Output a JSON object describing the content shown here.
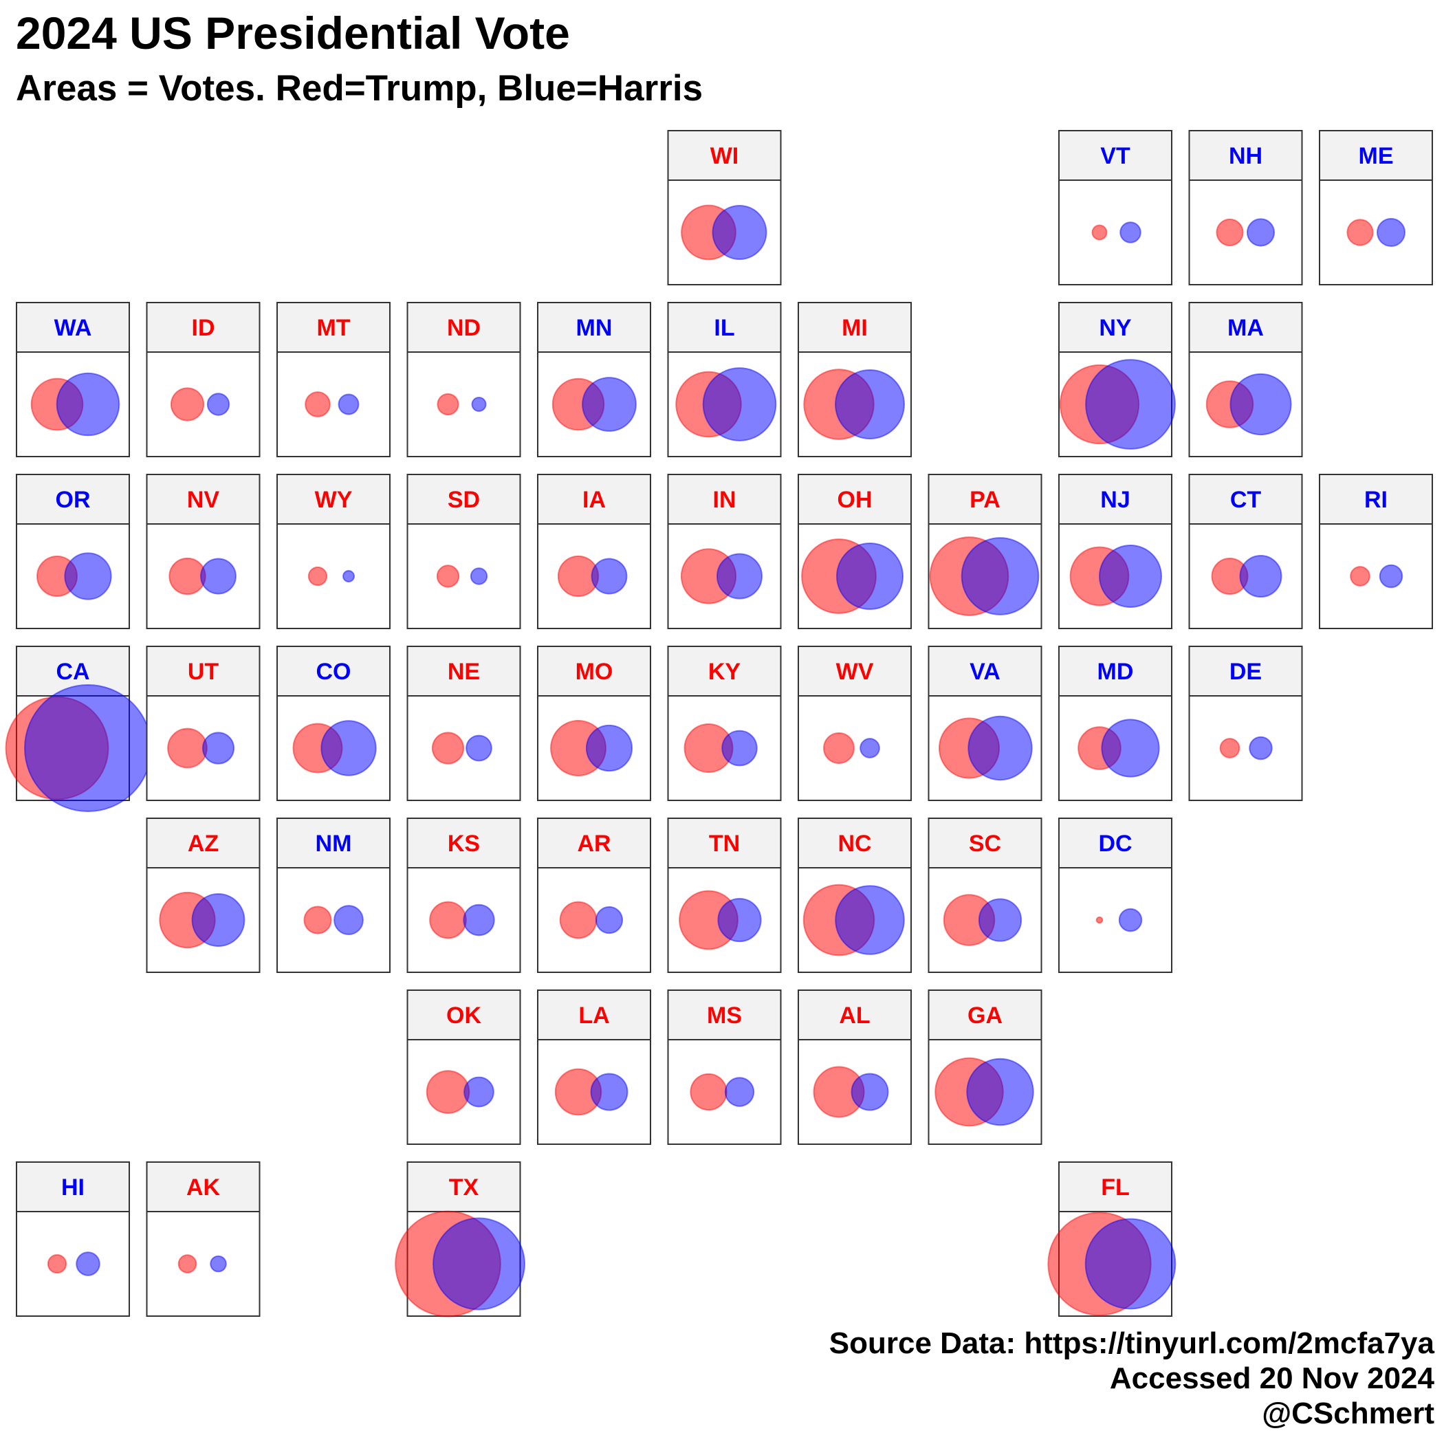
{
  "header": {
    "title": "2024 US Presidential Vote",
    "subtitle": "Areas = Votes. Red=Trump, Blue=Harris"
  },
  "footer": {
    "line1": "Source Data: https://tinyurl.com/2mcfa7ya",
    "line2": "Accessed 20 Nov 2024",
    "line3": "@CSchmert"
  },
  "colors": {
    "trump": "#ff0000",
    "harris": "#0000ff",
    "trump_fill": "rgba(255,0,0,0.5)",
    "harris_fill": "rgba(0,0,255,0.5)",
    "strip": "#f2f2f2",
    "border": "#333333"
  },
  "chart_data": {
    "type": "tile-grid bubble chart",
    "encoding": "circle area proportional to votes (millions); red circle = Trump, blue circle = Harris; state label colored by winner",
    "unit": "million votes",
    "tiles": [
      {
        "state": "WI",
        "row": 0,
        "col": 5,
        "winner": "R",
        "trump": 1.7,
        "harris": 1.67
      },
      {
        "state": "VT",
        "row": 0,
        "col": 8,
        "winner": "D",
        "trump": 0.12,
        "harris": 0.24
      },
      {
        "state": "NH",
        "row": 0,
        "col": 9,
        "winner": "D",
        "trump": 0.4,
        "harris": 0.42
      },
      {
        "state": "ME",
        "row": 0,
        "col": 10,
        "winner": "D",
        "trump": 0.38,
        "harris": 0.44
      },
      {
        "state": "WA",
        "row": 1,
        "col": 0,
        "winner": "D",
        "trump": 1.53,
        "harris": 2.25
      },
      {
        "state": "ID",
        "row": 1,
        "col": 1,
        "winner": "R",
        "trump": 0.61,
        "harris": 0.27
      },
      {
        "state": "MT",
        "row": 1,
        "col": 2,
        "winner": "R",
        "trump": 0.35,
        "harris": 0.23
      },
      {
        "state": "ND",
        "row": 1,
        "col": 3,
        "winner": "R",
        "trump": 0.25,
        "harris": 0.11
      },
      {
        "state": "MN",
        "row": 1,
        "col": 4,
        "winner": "D",
        "trump": 1.52,
        "harris": 1.66
      },
      {
        "state": "IL",
        "row": 1,
        "col": 5,
        "winner": "D",
        "trump": 2.45,
        "harris": 3.06
      },
      {
        "state": "MI",
        "row": 1,
        "col": 6,
        "winner": "R",
        "trump": 2.82,
        "harris": 2.74
      },
      {
        "state": "NY",
        "row": 1,
        "col": 8,
        "winner": "D",
        "trump": 3.58,
        "harris": 4.62
      },
      {
        "state": "MA",
        "row": 1,
        "col": 9,
        "winner": "D",
        "trump": 1.25,
        "harris": 2.13
      },
      {
        "state": "OR",
        "row": 2,
        "col": 0,
        "winner": "D",
        "trump": 0.92,
        "harris": 1.24
      },
      {
        "state": "NV",
        "row": 2,
        "col": 1,
        "winner": "R",
        "trump": 0.75,
        "harris": 0.71
      },
      {
        "state": "WY",
        "row": 2,
        "col": 2,
        "winner": "R",
        "trump": 0.19,
        "harris": 0.07
      },
      {
        "state": "SD",
        "row": 2,
        "col": 3,
        "winner": "R",
        "trump": 0.27,
        "harris": 0.15
      },
      {
        "state": "IA",
        "row": 2,
        "col": 4,
        "winner": "R",
        "trump": 0.93,
        "harris": 0.71
      },
      {
        "state": "IN",
        "row": 2,
        "col": 5,
        "winner": "R",
        "trump": 1.72,
        "harris": 1.16
      },
      {
        "state": "OH",
        "row": 2,
        "col": 6,
        "winner": "R",
        "trump": 3.18,
        "harris": 2.53
      },
      {
        "state": "PA",
        "row": 2,
        "col": 7,
        "winner": "R",
        "trump": 3.54,
        "harris": 3.42
      },
      {
        "state": "NJ",
        "row": 2,
        "col": 8,
        "winner": "D",
        "trump": 1.97,
        "harris": 2.22
      },
      {
        "state": "CT",
        "row": 2,
        "col": 9,
        "winner": "D",
        "trump": 0.74,
        "harris": 0.99
      },
      {
        "state": "RI",
        "row": 2,
        "col": 10,
        "winner": "D",
        "trump": 0.21,
        "harris": 0.29
      },
      {
        "state": "CA",
        "row": 3,
        "col": 0,
        "winner": "D",
        "trump": 6.08,
        "harris": 9.28
      },
      {
        "state": "UT",
        "row": 3,
        "col": 1,
        "winner": "R",
        "trump": 0.88,
        "harris": 0.56
      },
      {
        "state": "CO",
        "row": 3,
        "col": 2,
        "winner": "D",
        "trump": 1.38,
        "harris": 1.73
      },
      {
        "state": "NE",
        "row": 3,
        "col": 3,
        "winner": "R",
        "trump": 0.56,
        "harris": 0.37
      },
      {
        "state": "MO",
        "row": 3,
        "col": 4,
        "winner": "R",
        "trump": 1.75,
        "harris": 1.2
      },
      {
        "state": "KY",
        "row": 3,
        "col": 5,
        "winner": "R",
        "trump": 1.34,
        "harris": 0.7
      },
      {
        "state": "WV",
        "row": 3,
        "col": 6,
        "winner": "R",
        "trump": 0.53,
        "harris": 0.21
      },
      {
        "state": "VA",
        "row": 3,
        "col": 7,
        "winner": "D",
        "trump": 2.08,
        "harris": 2.34
      },
      {
        "state": "MD",
        "row": 3,
        "col": 8,
        "winner": "D",
        "trump": 1.04,
        "harris": 1.9
      },
      {
        "state": "DE",
        "row": 3,
        "col": 9,
        "winner": "D",
        "trump": 0.21,
        "harris": 0.29
      },
      {
        "state": "AZ",
        "row": 4,
        "col": 1,
        "winner": "R",
        "trump": 1.77,
        "harris": 1.58
      },
      {
        "state": "NM",
        "row": 4,
        "col": 2,
        "winner": "D",
        "trump": 0.42,
        "harris": 0.48
      },
      {
        "state": "KS",
        "row": 4,
        "col": 3,
        "winner": "R",
        "trump": 0.76,
        "harris": 0.54
      },
      {
        "state": "AR",
        "row": 4,
        "col": 4,
        "winner": "R",
        "trump": 0.76,
        "harris": 0.4
      },
      {
        "state": "TN",
        "row": 4,
        "col": 5,
        "winner": "R",
        "trump": 1.97,
        "harris": 1.06
      },
      {
        "state": "NC",
        "row": 4,
        "col": 6,
        "winner": "R",
        "trump": 2.88,
        "harris": 2.72
      },
      {
        "state": "SC",
        "row": 4,
        "col": 7,
        "winner": "R",
        "trump": 1.48,
        "harris": 1.03
      },
      {
        "state": "DC",
        "row": 4,
        "col": 8,
        "winner": "D",
        "trump": 0.02,
        "harris": 0.29
      },
      {
        "state": "OK",
        "row": 5,
        "col": 3,
        "winner": "R",
        "trump": 1.04,
        "harris": 0.5
      },
      {
        "state": "LA",
        "row": 5,
        "col": 4,
        "winner": "R",
        "trump": 1.21,
        "harris": 0.77
      },
      {
        "state": "MS",
        "row": 5,
        "col": 5,
        "winner": "R",
        "trump": 0.75,
        "harris": 0.47
      },
      {
        "state": "AL",
        "row": 5,
        "col": 6,
        "winner": "R",
        "trump": 1.46,
        "harris": 0.77
      },
      {
        "state": "GA",
        "row": 5,
        "col": 7,
        "winner": "R",
        "trump": 2.66,
        "harris": 2.55
      },
      {
        "state": "HI",
        "row": 6,
        "col": 0,
        "winner": "D",
        "trump": 0.19,
        "harris": 0.31
      },
      {
        "state": "AK",
        "row": 6,
        "col": 1,
        "winner": "R",
        "trump": 0.18,
        "harris": 0.14
      },
      {
        "state": "TX",
        "row": 6,
        "col": 3,
        "winner": "R",
        "trump": 6.39,
        "harris": 4.84
      },
      {
        "state": "FL",
        "row": 6,
        "col": 8,
        "winner": "R",
        "trump": 6.11,
        "harris": 4.68
      }
    ]
  }
}
